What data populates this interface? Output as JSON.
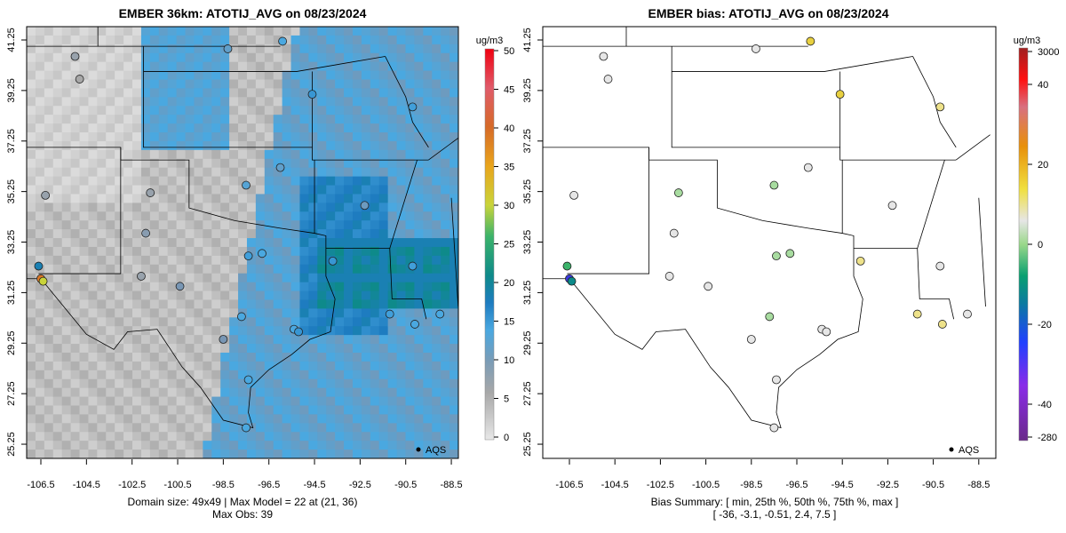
{
  "chart_data": [
    {
      "type": "heatmap",
      "title": "EMBER 36km: ATOTIJ_AVG on 08/23/2024",
      "x_ticks": [
        "-106.5",
        "-104.5",
        "-102.5",
        "-100.5",
        "-98.5",
        "-96.5",
        "-94.5",
        "-92.5",
        "-90.5",
        "-88.5"
      ],
      "y_ticks": [
        "41.25",
        "39.25",
        "37.25",
        "35.25",
        "33.25",
        "31.25",
        "29.25",
        "27.25",
        "25.25"
      ],
      "colorbar": {
        "unit": "ug/m3",
        "ticks": [
          "0",
          "5",
          "10",
          "15",
          "20",
          "25",
          "30",
          "35",
          "40",
          "45",
          "50"
        ],
        "range": [
          0,
          50
        ]
      },
      "legend": "AQS",
      "caption_line1": "Domain size: 49x49 | Max Model = 22 at (21, 36)",
      "caption_line2": "Max Obs: 39",
      "stations": [
        {
          "lon": -105.0,
          "lat": 40.6,
          "v": 6
        },
        {
          "lon": -104.8,
          "lat": 39.7,
          "v": 5
        },
        {
          "lon": -106.3,
          "lat": 35.1,
          "v": 6
        },
        {
          "lon": -106.5,
          "lat": 31.8,
          "v": 39
        },
        {
          "lon": -106.4,
          "lat": 31.7,
          "v": 30
        },
        {
          "lon": -106.6,
          "lat": 32.3,
          "v": 18
        },
        {
          "lon": -97.4,
          "lat": 32.7,
          "v": 13
        },
        {
          "lon": -96.8,
          "lat": 32.8,
          "v": 12
        },
        {
          "lon": -95.4,
          "lat": 29.8,
          "v": 12
        },
        {
          "lon": -95.2,
          "lat": 29.7,
          "v": 14
        },
        {
          "lon": -98.5,
          "lat": 29.4,
          "v": 8
        },
        {
          "lon": -97.7,
          "lat": 30.3,
          "v": 12
        },
        {
          "lon": -97.4,
          "lat": 27.8,
          "v": 12
        },
        {
          "lon": -97.5,
          "lat": 25.9,
          "v": 12
        },
        {
          "lon": -92.3,
          "lat": 34.7,
          "v": 9
        },
        {
          "lon": -90.1,
          "lat": 30.0,
          "v": 12
        },
        {
          "lon": -94.6,
          "lat": 39.1,
          "v": 14
        },
        {
          "lon": -90.2,
          "lat": 38.6,
          "v": 13
        },
        {
          "lon": -97.5,
          "lat": 35.5,
          "v": 11
        },
        {
          "lon": -96.0,
          "lat": 36.2,
          "v": 10
        },
        {
          "lon": -101.9,
          "lat": 33.6,
          "v": 7
        },
        {
          "lon": -102.1,
          "lat": 31.9,
          "v": 6
        },
        {
          "lon": -100.4,
          "lat": 31.5,
          "v": 8
        },
        {
          "lon": -93.7,
          "lat": 32.5,
          "v": 14
        },
        {
          "lon": -91.2,
          "lat": 30.4,
          "v": 13
        },
        {
          "lon": -89.0,
          "lat": 30.4,
          "v": 12
        },
        {
          "lon": -90.2,
          "lat": 32.3,
          "v": 13
        },
        {
          "lon": -95.9,
          "lat": 41.2,
          "v": 12
        },
        {
          "lon": -98.3,
          "lat": 40.9,
          "v": 10
        },
        {
          "lon": -101.7,
          "lat": 35.2,
          "v": 6
        }
      ]
    },
    {
      "type": "heatmap",
      "title": "EMBER bias: ATOTIJ_AVG on 08/23/2024",
      "x_ticks": [
        "-106.5",
        "-104.5",
        "-102.5",
        "-100.5",
        "-98.5",
        "-96.5",
        "-94.5",
        "-92.5",
        "-90.5",
        "-88.5"
      ],
      "y_ticks": [
        "41.25",
        "39.25",
        "37.25",
        "35.25",
        "33.25",
        "31.25",
        "29.25",
        "27.25",
        "25.25"
      ],
      "colorbar": {
        "unit": "ug/m3",
        "ticks": [
          "3000",
          "40",
          "20",
          "0",
          "-20",
          "-40",
          "-280"
        ]
      },
      "legend": "AQS",
      "caption_line1": "Bias Summary: [ min, 25th %, 50th %, 75th %, max ]",
      "caption_line2": "[ -36,  -3.1,  -0.51,  2.4,  7.5 ]",
      "stations": [
        {
          "lon": -105.0,
          "lat": 40.6,
          "v": 0
        },
        {
          "lon": -104.8,
          "lat": 39.7,
          "v": -1
        },
        {
          "lon": -106.3,
          "lat": 35.1,
          "v": 0
        },
        {
          "lon": -106.5,
          "lat": 31.8,
          "v": -36
        },
        {
          "lon": -106.4,
          "lat": 31.7,
          "v": -25
        },
        {
          "lon": -106.6,
          "lat": 32.3,
          "v": -15
        },
        {
          "lon": -97.4,
          "lat": 32.7,
          "v": -5
        },
        {
          "lon": -96.8,
          "lat": 32.8,
          "v": -4
        },
        {
          "lon": -95.4,
          "lat": 29.8,
          "v": -1
        },
        {
          "lon": -95.2,
          "lat": 29.7,
          "v": -2
        },
        {
          "lon": -98.5,
          "lat": 29.4,
          "v": -2
        },
        {
          "lon": -97.7,
          "lat": 30.3,
          "v": -3
        },
        {
          "lon": -97.4,
          "lat": 27.8,
          "v": -2
        },
        {
          "lon": -97.5,
          "lat": 25.9,
          "v": -1
        },
        {
          "lon": -92.3,
          "lat": 34.7,
          "v": 0
        },
        {
          "lon": -90.1,
          "lat": 30.0,
          "v": 4
        },
        {
          "lon": -94.6,
          "lat": 39.1,
          "v": 6
        },
        {
          "lon": -90.2,
          "lat": 38.6,
          "v": 5
        },
        {
          "lon": -97.5,
          "lat": 35.5,
          "v": -3
        },
        {
          "lon": -96.0,
          "lat": 36.2,
          "v": -1
        },
        {
          "lon": -101.9,
          "lat": 33.6,
          "v": -1
        },
        {
          "lon": -102.1,
          "lat": 31.9,
          "v": -1
        },
        {
          "lon": -100.4,
          "lat": 31.5,
          "v": -2
        },
        {
          "lon": -93.7,
          "lat": 32.5,
          "v": 3
        },
        {
          "lon": -91.2,
          "lat": 30.4,
          "v": 2
        },
        {
          "lon": -89.0,
          "lat": 30.4,
          "v": -2
        },
        {
          "lon": -90.2,
          "lat": 32.3,
          "v": 0
        },
        {
          "lon": -95.9,
          "lat": 41.2,
          "v": 7
        },
        {
          "lon": -98.3,
          "lat": 40.9,
          "v": -1
        },
        {
          "lon": -101.7,
          "lat": 35.2,
          "v": -3
        }
      ]
    }
  ]
}
